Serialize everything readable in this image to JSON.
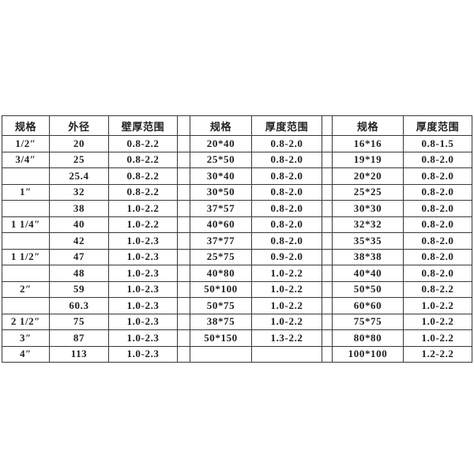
{
  "theme": {
    "page_background": "#ffffff",
    "border_color": "#383838",
    "text_color": "#212121"
  },
  "table": {
    "sections": [
      {
        "name": "left-section",
        "headers": [
          "规格",
          "外径",
          "壁厚范围"
        ]
      },
      {
        "name": "middle-section",
        "headers": [
          "规格",
          "厚度范围"
        ]
      },
      {
        "name": "right-section",
        "headers": [
          "规格",
          "厚度范围"
        ]
      }
    ],
    "header_cells": [
      "规格",
      "外径",
      "壁厚范围",
      "",
      "规格",
      "厚度范围",
      "",
      "规格",
      "厚度范围"
    ],
    "rows": [
      [
        "1/2″",
        "20",
        "0.8-2.2",
        "",
        "20*40",
        "0.8-2.0",
        "",
        "16*16",
        "0.8-1.5"
      ],
      [
        "3/4″",
        "25",
        "0.8-2.2",
        "",
        "25*50",
        "0.8-2.0",
        "",
        "19*19",
        "0.8-2.0"
      ],
      [
        "",
        "25.4",
        "0.8-2.2",
        "",
        "30*40",
        "0.8-2.0",
        "",
        "20*20",
        "0.8-2.0"
      ],
      [
        "1″",
        "32",
        "0.8-2.2",
        "",
        "30*50",
        "0.8-2.0",
        "",
        "25*25",
        "0.8-2.0"
      ],
      [
        "",
        "38",
        "1.0-2.2",
        "",
        "37*57",
        "0.8-2.0",
        "",
        "30*30",
        "0.8-2.0"
      ],
      [
        "1 1/4″",
        "40",
        "1.0-2.2",
        "",
        "40*60",
        "0.8-2.0",
        "",
        "32*32",
        "0.8-2.0"
      ],
      [
        "",
        "42",
        "1.0-2.3",
        "",
        "37*77",
        "0.8-2.0",
        "",
        "35*35",
        "0.8-2.0"
      ],
      [
        "1 1/2″",
        "47",
        "1.0-2.3",
        "",
        "25*75",
        "0.9-2.0",
        "",
        "38*38",
        "0.8-2.0"
      ],
      [
        "",
        "48",
        "1.0-2.3",
        "",
        "40*80",
        "1.0-2.2",
        "",
        "40*40",
        "0.8-2.0"
      ],
      [
        "2″",
        "59",
        "1.0-2.3",
        "",
        "50*100",
        "1.0-2.2",
        "",
        "50*50",
        "0.8-2.2"
      ],
      [
        "",
        "60.3",
        "1.0-2.3",
        "",
        "50*75",
        "1.0-2.2",
        "",
        "60*60",
        "1.0-2.2"
      ],
      [
        "2 1/2″",
        "75",
        "1.0-2.3",
        "",
        "38*75",
        "1.0-2.2",
        "",
        "75*75",
        "1.0-2.2"
      ],
      [
        "3″",
        "87",
        "1.0-2.3",
        "",
        "50*150",
        "1.3-2.2",
        "",
        "80*80",
        "1.0-2.2"
      ],
      [
        "4″",
        "113",
        "1.0-2.3",
        "",
        "",
        "",
        "",
        "100*100",
        "1.2-2.2"
      ]
    ]
  }
}
